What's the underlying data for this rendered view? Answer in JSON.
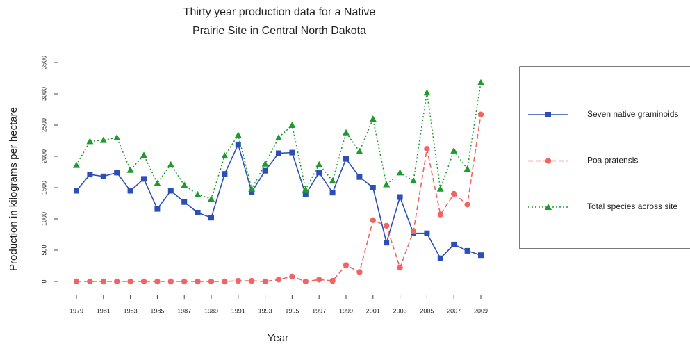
{
  "chart_data": {
    "type": "line",
    "title": [
      "Thirty year production data for a Native",
      "Prairie Site in Central North Dakota"
    ],
    "x_label": "Year",
    "y_label": "Production in kilograms per hectare",
    "x": [
      1979,
      1980,
      1981,
      1982,
      1983,
      1984,
      1985,
      1986,
      1987,
      1988,
      1989,
      1990,
      1991,
      1992,
      1993,
      1994,
      1995,
      1996,
      1997,
      1998,
      1999,
      2000,
      2001,
      2002,
      2003,
      2004,
      2005,
      2006,
      2007,
      2008,
      2009
    ],
    "xlim": [
      1979,
      2009
    ],
    "xticks": [
      1979,
      1981,
      1983,
      1985,
      1987,
      1989,
      1991,
      1993,
      1995,
      1997,
      1999,
      2001,
      2003,
      2005,
      2007,
      2009
    ],
    "ylim": [
      0,
      3500
    ],
    "yticks": [
      0,
      500,
      1000,
      1500,
      2000,
      2500,
      3000,
      3500
    ],
    "legend": "right",
    "series": [
      {
        "name": "Seven native graminoids",
        "color": "#2b4fb6",
        "marker": "square",
        "dash": "solid",
        "values": [
          1450,
          1710,
          1680,
          1740,
          1450,
          1640,
          1160,
          1450,
          1270,
          1100,
          1020,
          1720,
          2190,
          1430,
          1770,
          2050,
          2060,
          1390,
          1740,
          1420,
          1960,
          1670,
          1500,
          620,
          1350,
          770,
          770,
          370,
          590,
          490,
          420
        ]
      },
      {
        "name": "Poa pratensis",
        "color": "#f26464",
        "marker": "circle",
        "dash": "dashed",
        "values": [
          0,
          0,
          0,
          0,
          0,
          0,
          0,
          0,
          0,
          0,
          0,
          0,
          10,
          10,
          0,
          30,
          80,
          0,
          30,
          10,
          260,
          150,
          980,
          890,
          220,
          800,
          2120,
          1070,
          1400,
          1230,
          2670
        ]
      },
      {
        "name": "Total species across site",
        "color": "#1f9a2e",
        "marker": "triangle",
        "dash": "dotted",
        "values": [
          1860,
          2240,
          2260,
          2300,
          1780,
          2020,
          1570,
          1870,
          1540,
          1390,
          1320,
          2010,
          2340,
          1480,
          1880,
          2300,
          2500,
          1470,
          1870,
          1610,
          2380,
          2080,
          2600,
          1550,
          1740,
          1610,
          3020,
          1480,
          2090,
          1800,
          3180
        ]
      }
    ]
  }
}
